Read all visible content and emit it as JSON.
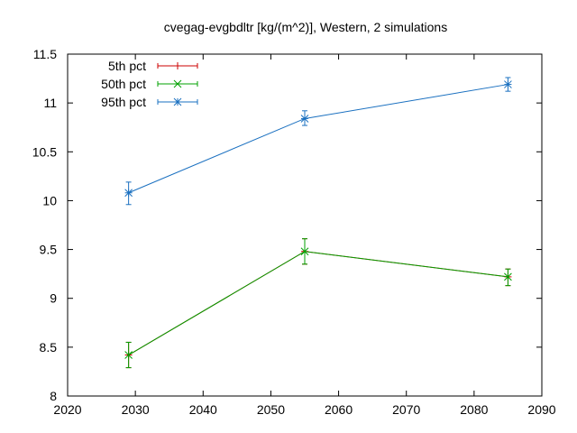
{
  "chart_data": {
    "type": "line",
    "title": "cvegag-evgbdltr [kg/(m^2)], Western, 2 simulations",
    "xlabel": "",
    "ylabel": "",
    "xlim": [
      2020,
      2090
    ],
    "ylim": [
      8,
      11.5
    ],
    "x_ticks": [
      "2020",
      "2030",
      "2040",
      "2050",
      "2060",
      "2070",
      "2080",
      "2090"
    ],
    "y_ticks": [
      "8",
      "8.5",
      "9",
      "9.5",
      "10",
      "10.5",
      "11",
      "11.5"
    ],
    "grid": false,
    "legend_position": "top-left",
    "series": [
      {
        "name": "5th pct",
        "color": "#cc0000",
        "marker": "plus",
        "x": [
          2029,
          2055,
          2085
        ],
        "y": [
          8.42,
          9.48,
          9.22
        ],
        "err_low": [
          8.29,
          9.35,
          9.13
        ],
        "err_high": [
          8.55,
          9.61,
          9.3
        ]
      },
      {
        "name": "50th pct",
        "color": "#00a000",
        "marker": "x",
        "x": [
          2029,
          2055,
          2085
        ],
        "y": [
          8.42,
          9.48,
          9.22
        ],
        "err_low": [
          8.29,
          9.35,
          9.13
        ],
        "err_high": [
          8.55,
          9.61,
          9.3
        ]
      },
      {
        "name": "95th pct",
        "color": "#1a70c0",
        "marker": "star",
        "x": [
          2029,
          2055,
          2085
        ],
        "y": [
          10.08,
          10.84,
          11.19
        ],
        "err_low": [
          9.96,
          10.77,
          11.12
        ],
        "err_high": [
          10.19,
          10.92,
          11.26
        ]
      }
    ]
  }
}
